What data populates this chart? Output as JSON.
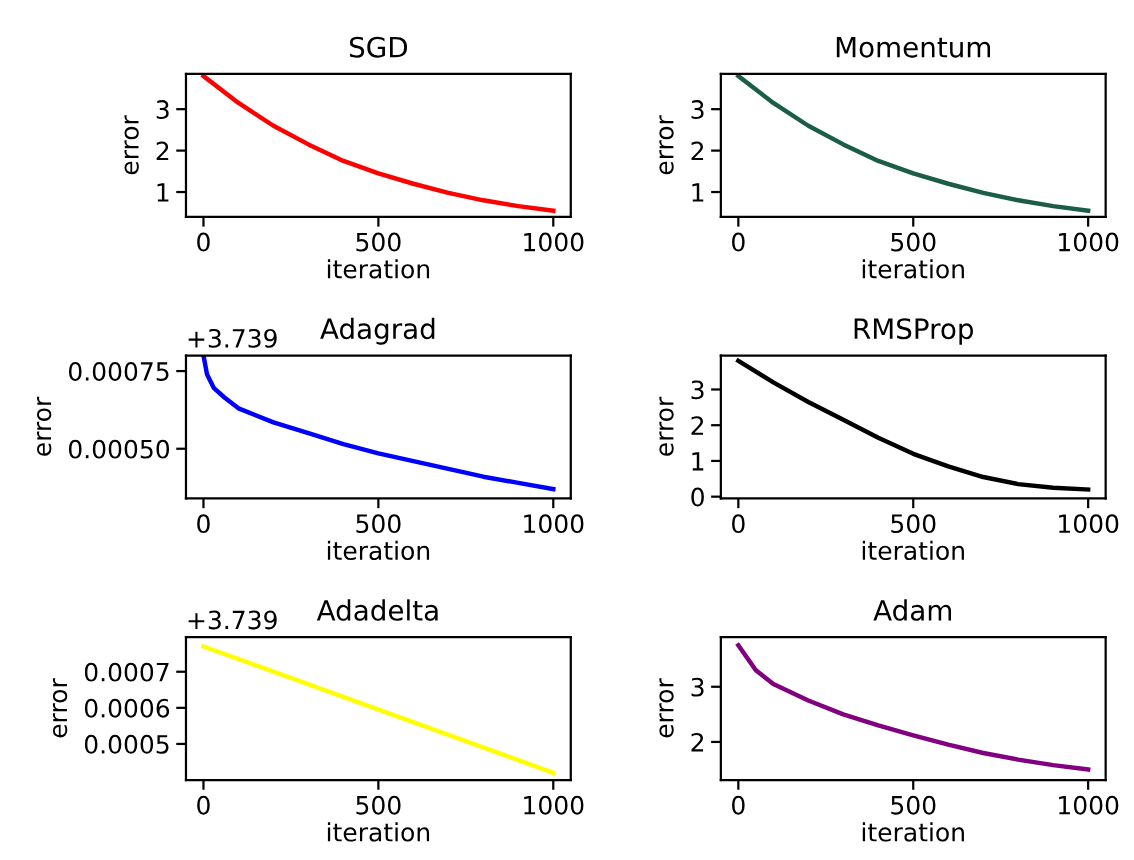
{
  "chart_data": [
    {
      "type": "line",
      "title": "SGD",
      "xlabel": "iteration",
      "ylabel": "error",
      "x": [
        0,
        100,
        200,
        300,
        400,
        500,
        600,
        700,
        800,
        900,
        1000
      ],
      "series": [
        {
          "color": "#ff0000",
          "values": [
            3.8,
            3.15,
            2.6,
            2.15,
            1.75,
            1.45,
            1.2,
            0.98,
            0.8,
            0.66,
            0.55
          ]
        }
      ],
      "xlim": [
        -50,
        1050
      ],
      "ylim": [
        0.4,
        3.85
      ],
      "xticks": [
        0,
        500,
        1000
      ],
      "yticks": [
        1,
        2,
        3
      ]
    },
    {
      "type": "line",
      "title": "Momentum",
      "xlabel": "iteration",
      "ylabel": "error",
      "x": [
        0,
        100,
        200,
        300,
        400,
        500,
        600,
        700,
        800,
        900,
        1000
      ],
      "series": [
        {
          "color": "#1b5e45",
          "values": [
            3.8,
            3.15,
            2.6,
            2.15,
            1.75,
            1.45,
            1.2,
            0.98,
            0.8,
            0.66,
            0.55
          ]
        }
      ],
      "xlim": [
        -50,
        1050
      ],
      "ylim": [
        0.4,
        3.85
      ],
      "xticks": [
        0,
        500,
        1000
      ],
      "yticks": [
        1,
        2,
        3
      ]
    },
    {
      "type": "line",
      "title": "Adagrad",
      "xlabel": "iteration",
      "ylabel": "error",
      "annotations": [
        "+3.739"
      ],
      "x": [
        0,
        10,
        30,
        60,
        100,
        200,
        300,
        400,
        500,
        600,
        700,
        800,
        900,
        1000
      ],
      "series": [
        {
          "color": "#0000ff",
          "values": [
            0.0008,
            0.00074,
            0.000695,
            0.000665,
            0.00063,
            0.000585,
            0.00055,
            0.000515,
            0.000485,
            0.00046,
            0.000435,
            0.00041,
            0.00039,
            0.00037
          ]
        }
      ],
      "xlim": [
        -50,
        1050
      ],
      "ylim": [
        0.00034,
        0.0008
      ],
      "xticks": [
        0,
        500,
        1000
      ],
      "yticks": [
        0.00075,
        {
          "value": 0.0005,
          "label": "0.00050"
        }
      ]
    },
    {
      "type": "line",
      "title": "RMSProp",
      "xlabel": "iteration",
      "ylabel": "error",
      "x": [
        0,
        100,
        200,
        300,
        400,
        500,
        600,
        700,
        800,
        900,
        1000
      ],
      "series": [
        {
          "color": "#000000",
          "values": [
            3.8,
            3.2,
            2.65,
            2.15,
            1.65,
            1.2,
            0.85,
            0.55,
            0.35,
            0.25,
            0.2
          ]
        }
      ],
      "xlim": [
        -50,
        1050
      ],
      "ylim": [
        -0.05,
        3.95
      ],
      "xticks": [
        0,
        500,
        1000
      ],
      "yticks": [
        0,
        1,
        2,
        3
      ]
    },
    {
      "type": "line",
      "title": "Adadelta",
      "xlabel": "iteration",
      "ylabel": "error",
      "annotations": [
        "+3.739"
      ],
      "x": [
        0,
        1000
      ],
      "series": [
        {
          "color": "#ffff00",
          "values": [
            0.00077,
            0.00042
          ]
        }
      ],
      "xlim": [
        -50,
        1050
      ],
      "ylim": [
        0.0004,
        0.000796
      ],
      "xticks": [
        0,
        500,
        1000
      ],
      "yticks": [
        0.0007,
        0.0006,
        0.0005
      ]
    },
    {
      "type": "line",
      "title": "Adam",
      "xlabel": "iteration",
      "ylabel": "error",
      "x": [
        0,
        50,
        100,
        200,
        300,
        400,
        500,
        600,
        700,
        800,
        900,
        1000
      ],
      "series": [
        {
          "color": "#800080",
          "values": [
            3.75,
            3.3,
            3.05,
            2.75,
            2.5,
            2.3,
            2.12,
            1.95,
            1.8,
            1.68,
            1.58,
            1.5
          ]
        }
      ],
      "xlim": [
        -50,
        1050
      ],
      "ylim": [
        1.31,
        3.9
      ],
      "xticks": [
        0,
        500,
        1000
      ],
      "yticks": [
        2,
        3
      ]
    }
  ]
}
